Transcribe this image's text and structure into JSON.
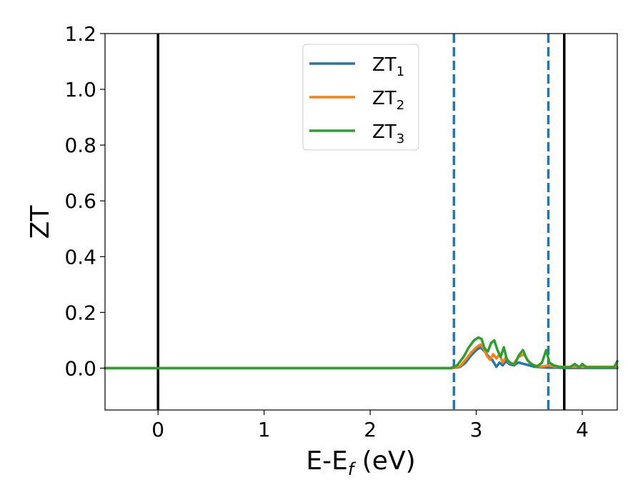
{
  "chart_data": {
    "type": "line",
    "xlabel": "E-E",
    "xlabel_sub": "f",
    "xlabel_unit": " (eV)",
    "ylabel": "ZT",
    "xlim": [
      -0.5,
      4.33
    ],
    "ylim": [
      -0.15,
      1.2
    ],
    "xticks": [
      0,
      1,
      2,
      3,
      4
    ],
    "xtick_labels": [
      "0",
      "1",
      "2",
      "3",
      "4"
    ],
    "yticks": [
      0.0,
      0.2,
      0.4,
      0.6,
      0.8,
      1.0,
      1.2
    ],
    "ytick_labels": [
      "0.0",
      "0.2",
      "0.4",
      "0.6",
      "0.8",
      "1.0",
      "1.2"
    ],
    "grid": false,
    "legend_position": "top-center",
    "vlines": [
      {
        "x": 0.0,
        "style": "solid",
        "color": "#000000"
      },
      {
        "x": 3.83,
        "style": "solid",
        "color": "#000000"
      },
      {
        "x": 2.79,
        "style": "dashed",
        "color": "#1f77b4"
      },
      {
        "x": 3.68,
        "style": "dashed",
        "color": "#1f77b4"
      }
    ],
    "series": [
      {
        "name": "ZT",
        "name_sub": "1",
        "color": "#1f77b4",
        "x": [
          -0.5,
          2.78,
          2.85,
          2.9,
          2.95,
          3.0,
          3.04,
          3.08,
          3.12,
          3.15,
          3.19,
          3.22,
          3.25,
          3.28,
          3.31,
          3.35,
          3.4,
          3.45,
          3.5,
          3.55,
          3.62,
          3.68,
          3.75,
          3.85,
          3.95,
          4.05,
          4.15,
          4.25,
          4.33
        ],
        "y": [
          0.0,
          0.0,
          0.005,
          0.02,
          0.045,
          0.065,
          0.075,
          0.06,
          0.04,
          0.03,
          0.005,
          0.02,
          0.01,
          0.025,
          0.015,
          0.01,
          0.02,
          0.015,
          0.01,
          0.005,
          0.003,
          0.002,
          0.002,
          0.001,
          0.001,
          0.001,
          0.001,
          0.001,
          0.001
        ]
      },
      {
        "name": "ZT",
        "name_sub": "2",
        "color": "#ff7f0e",
        "x": [
          -0.5,
          2.78,
          2.85,
          2.9,
          2.95,
          3.0,
          3.04,
          3.07,
          3.1,
          3.13,
          3.16,
          3.19,
          3.22,
          3.25,
          3.28,
          3.31,
          3.35,
          3.4,
          3.45,
          3.5,
          3.55,
          3.62,
          3.68,
          3.75,
          3.85,
          3.95,
          4.05,
          4.15,
          4.25,
          4.33
        ],
        "y": [
          0.0,
          0.0,
          0.008,
          0.03,
          0.055,
          0.075,
          0.085,
          0.07,
          0.045,
          0.03,
          0.05,
          0.035,
          0.05,
          0.02,
          0.04,
          0.02,
          0.015,
          0.04,
          0.05,
          0.02,
          0.01,
          0.005,
          0.01,
          0.005,
          0.005,
          0.005,
          0.005,
          0.005,
          0.005,
          0.005
        ]
      },
      {
        "name": "ZT",
        "name_sub": "3",
        "color": "#2ca02c",
        "x": [
          -0.5,
          2.76,
          2.82,
          2.88,
          2.93,
          2.98,
          3.02,
          3.05,
          3.08,
          3.11,
          3.14,
          3.17,
          3.2,
          3.23,
          3.26,
          3.29,
          3.32,
          3.36,
          3.4,
          3.44,
          3.48,
          3.52,
          3.57,
          3.62,
          3.66,
          3.69,
          3.73,
          3.78,
          3.83,
          3.88,
          3.93,
          3.97,
          4.0,
          4.04,
          4.1,
          4.15,
          4.2,
          4.25,
          4.3,
          4.33
        ],
        "y": [
          0.0,
          0.0,
          0.01,
          0.04,
          0.075,
          0.1,
          0.11,
          0.105,
          0.07,
          0.06,
          0.09,
          0.1,
          0.065,
          0.04,
          0.075,
          0.03,
          0.02,
          0.01,
          0.045,
          0.065,
          0.03,
          0.015,
          0.005,
          0.02,
          0.065,
          0.02,
          0.01,
          0.005,
          0.003,
          0.003,
          0.015,
          0.003,
          0.015,
          0.003,
          0.003,
          0.003,
          0.003,
          0.003,
          0.003,
          0.025
        ]
      }
    ]
  }
}
